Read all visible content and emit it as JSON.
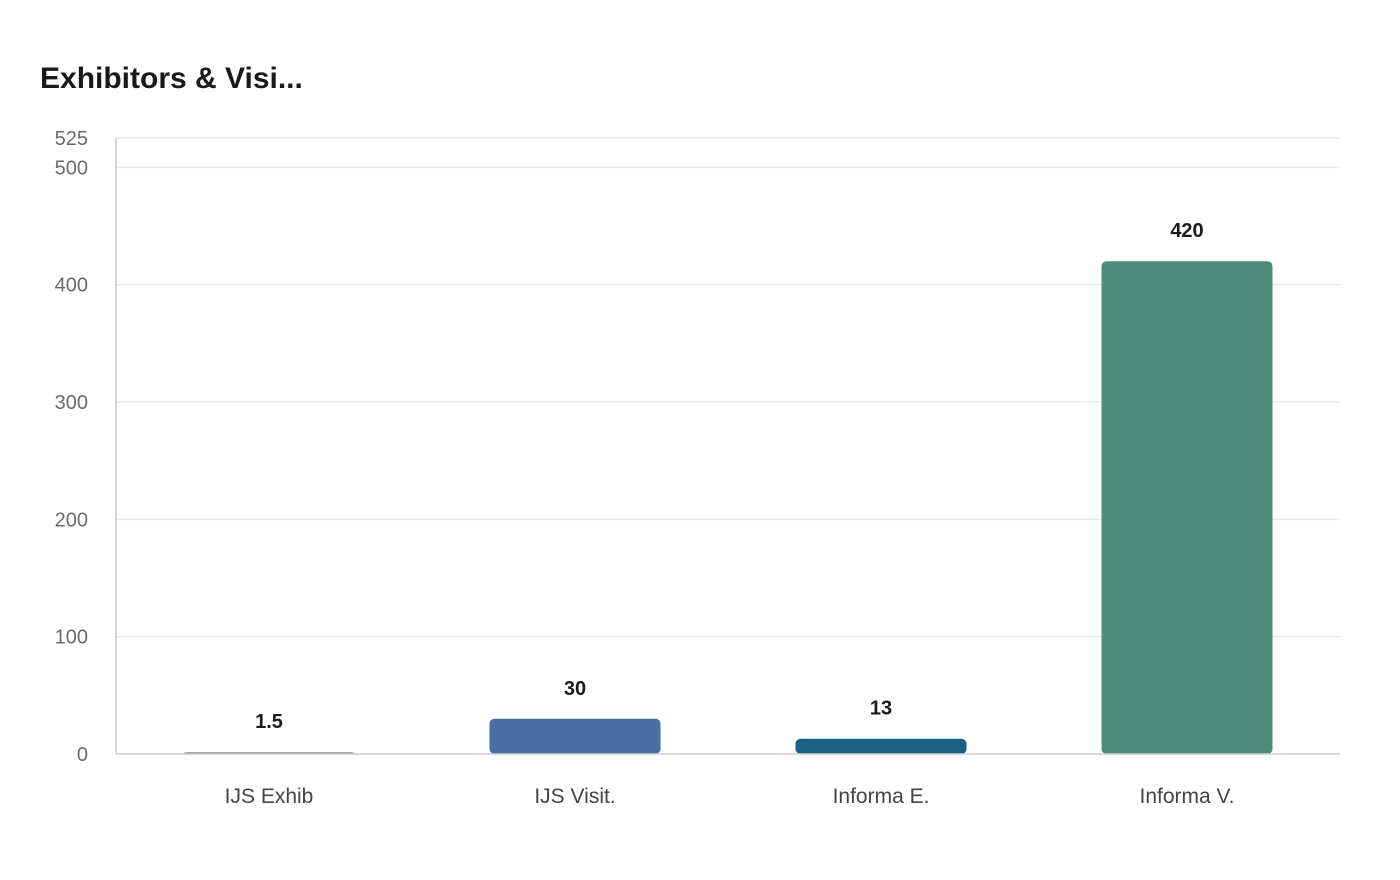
{
  "chart_data": {
    "type": "bar",
    "title": "Exhibitors & Visi...",
    "categories": [
      "IJS Exhib",
      "IJS Visit.",
      "Informa E.",
      "Informa V."
    ],
    "values": [
      1.5,
      30,
      13,
      420
    ],
    "value_labels": [
      "1.5",
      "30",
      "13",
      "420"
    ],
    "colors": [
      "#888888",
      "#4a6fa5",
      "#1b6185",
      "#4d8b79"
    ],
    "ylim": [
      0,
      525
    ],
    "yticks": [
      0,
      100,
      200,
      300,
      400,
      500,
      525
    ],
    "grid": true,
    "legend": "none"
  }
}
